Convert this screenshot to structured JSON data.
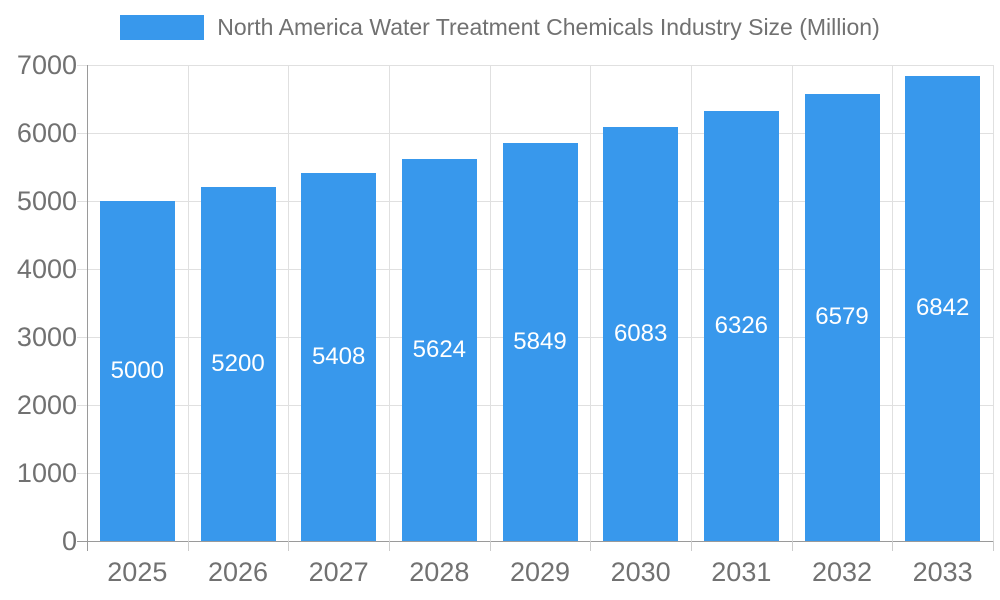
{
  "chart_data": {
    "type": "bar",
    "title": "North America Water Treatment Chemicals Industry Size (Million)",
    "categories": [
      "2025",
      "2026",
      "2027",
      "2028",
      "2029",
      "2030",
      "2031",
      "2032",
      "2033"
    ],
    "values": [
      5000,
      5200,
      5408,
      5624,
      5849,
      6083,
      6326,
      6579,
      6842
    ],
    "bar_labels": [
      "5000",
      "5200",
      "5408",
      "5624",
      "5849",
      "6083",
      "6326",
      "6579",
      "6842"
    ],
    "xlabel": "",
    "ylabel": "",
    "ylim": [
      0,
      7000
    ],
    "yticks": [
      0,
      1000,
      2000,
      3000,
      4000,
      5000,
      6000,
      7000
    ],
    "legend_position": "top",
    "grid": true,
    "colors": {
      "bar": "#3898EC",
      "bar_label_text": "#FFFFFF",
      "axis_text": "#717171",
      "gridline": "#E0E0E0",
      "axis_line": "#9A9A9A",
      "tick_line": "#CCCCCC",
      "background": "#FFFFFF"
    }
  }
}
